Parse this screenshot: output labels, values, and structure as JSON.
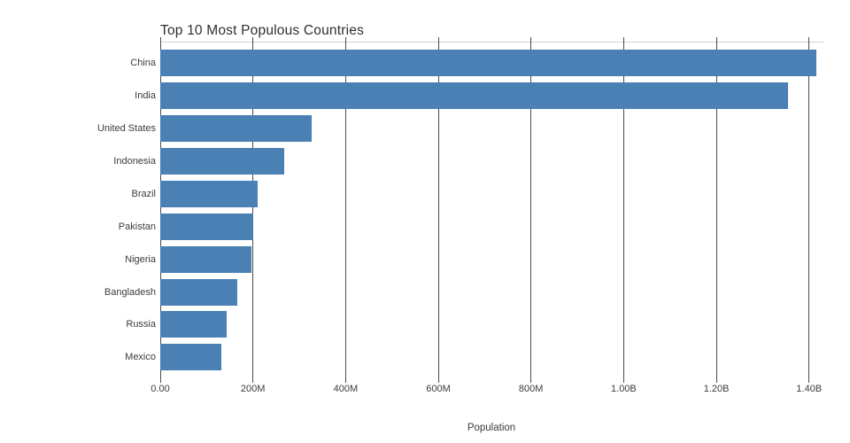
{
  "chart_data": {
    "type": "bar",
    "orientation": "horizontal",
    "title": "Top 10 Most Populous Countries",
    "xlabel": "Population",
    "ylabel": "",
    "categories": [
      "China",
      "India",
      "United States",
      "Indonesia",
      "Brazil",
      "Pakistan",
      "Nigeria",
      "Bangladesh",
      "Russia",
      "Mexico"
    ],
    "values": [
      1415000000,
      1354000000,
      327000000,
      267000000,
      211000000,
      201000000,
      196000000,
      166000000,
      144000000,
      131000000
    ],
    "xticks": [
      {
        "value": 0,
        "label": "0.00"
      },
      {
        "value": 200000000,
        "label": "200M"
      },
      {
        "value": 400000000,
        "label": "400M"
      },
      {
        "value": 600000000,
        "label": "600M"
      },
      {
        "value": 800000000,
        "label": "800M"
      },
      {
        "value": 1000000000,
        "label": "1.00B"
      },
      {
        "value": 1200000000,
        "label": "1.20B"
      },
      {
        "value": 1400000000,
        "label": "1.40B"
      }
    ],
    "xlim": [
      0,
      1431000000
    ],
    "grid": true,
    "legend": false,
    "colors": {
      "bar": "#4a80b4",
      "grid": "#4a4a4a",
      "axis_line": "#ccd3da",
      "text": "#3b3b3b",
      "title": "#2e2e2e"
    }
  }
}
